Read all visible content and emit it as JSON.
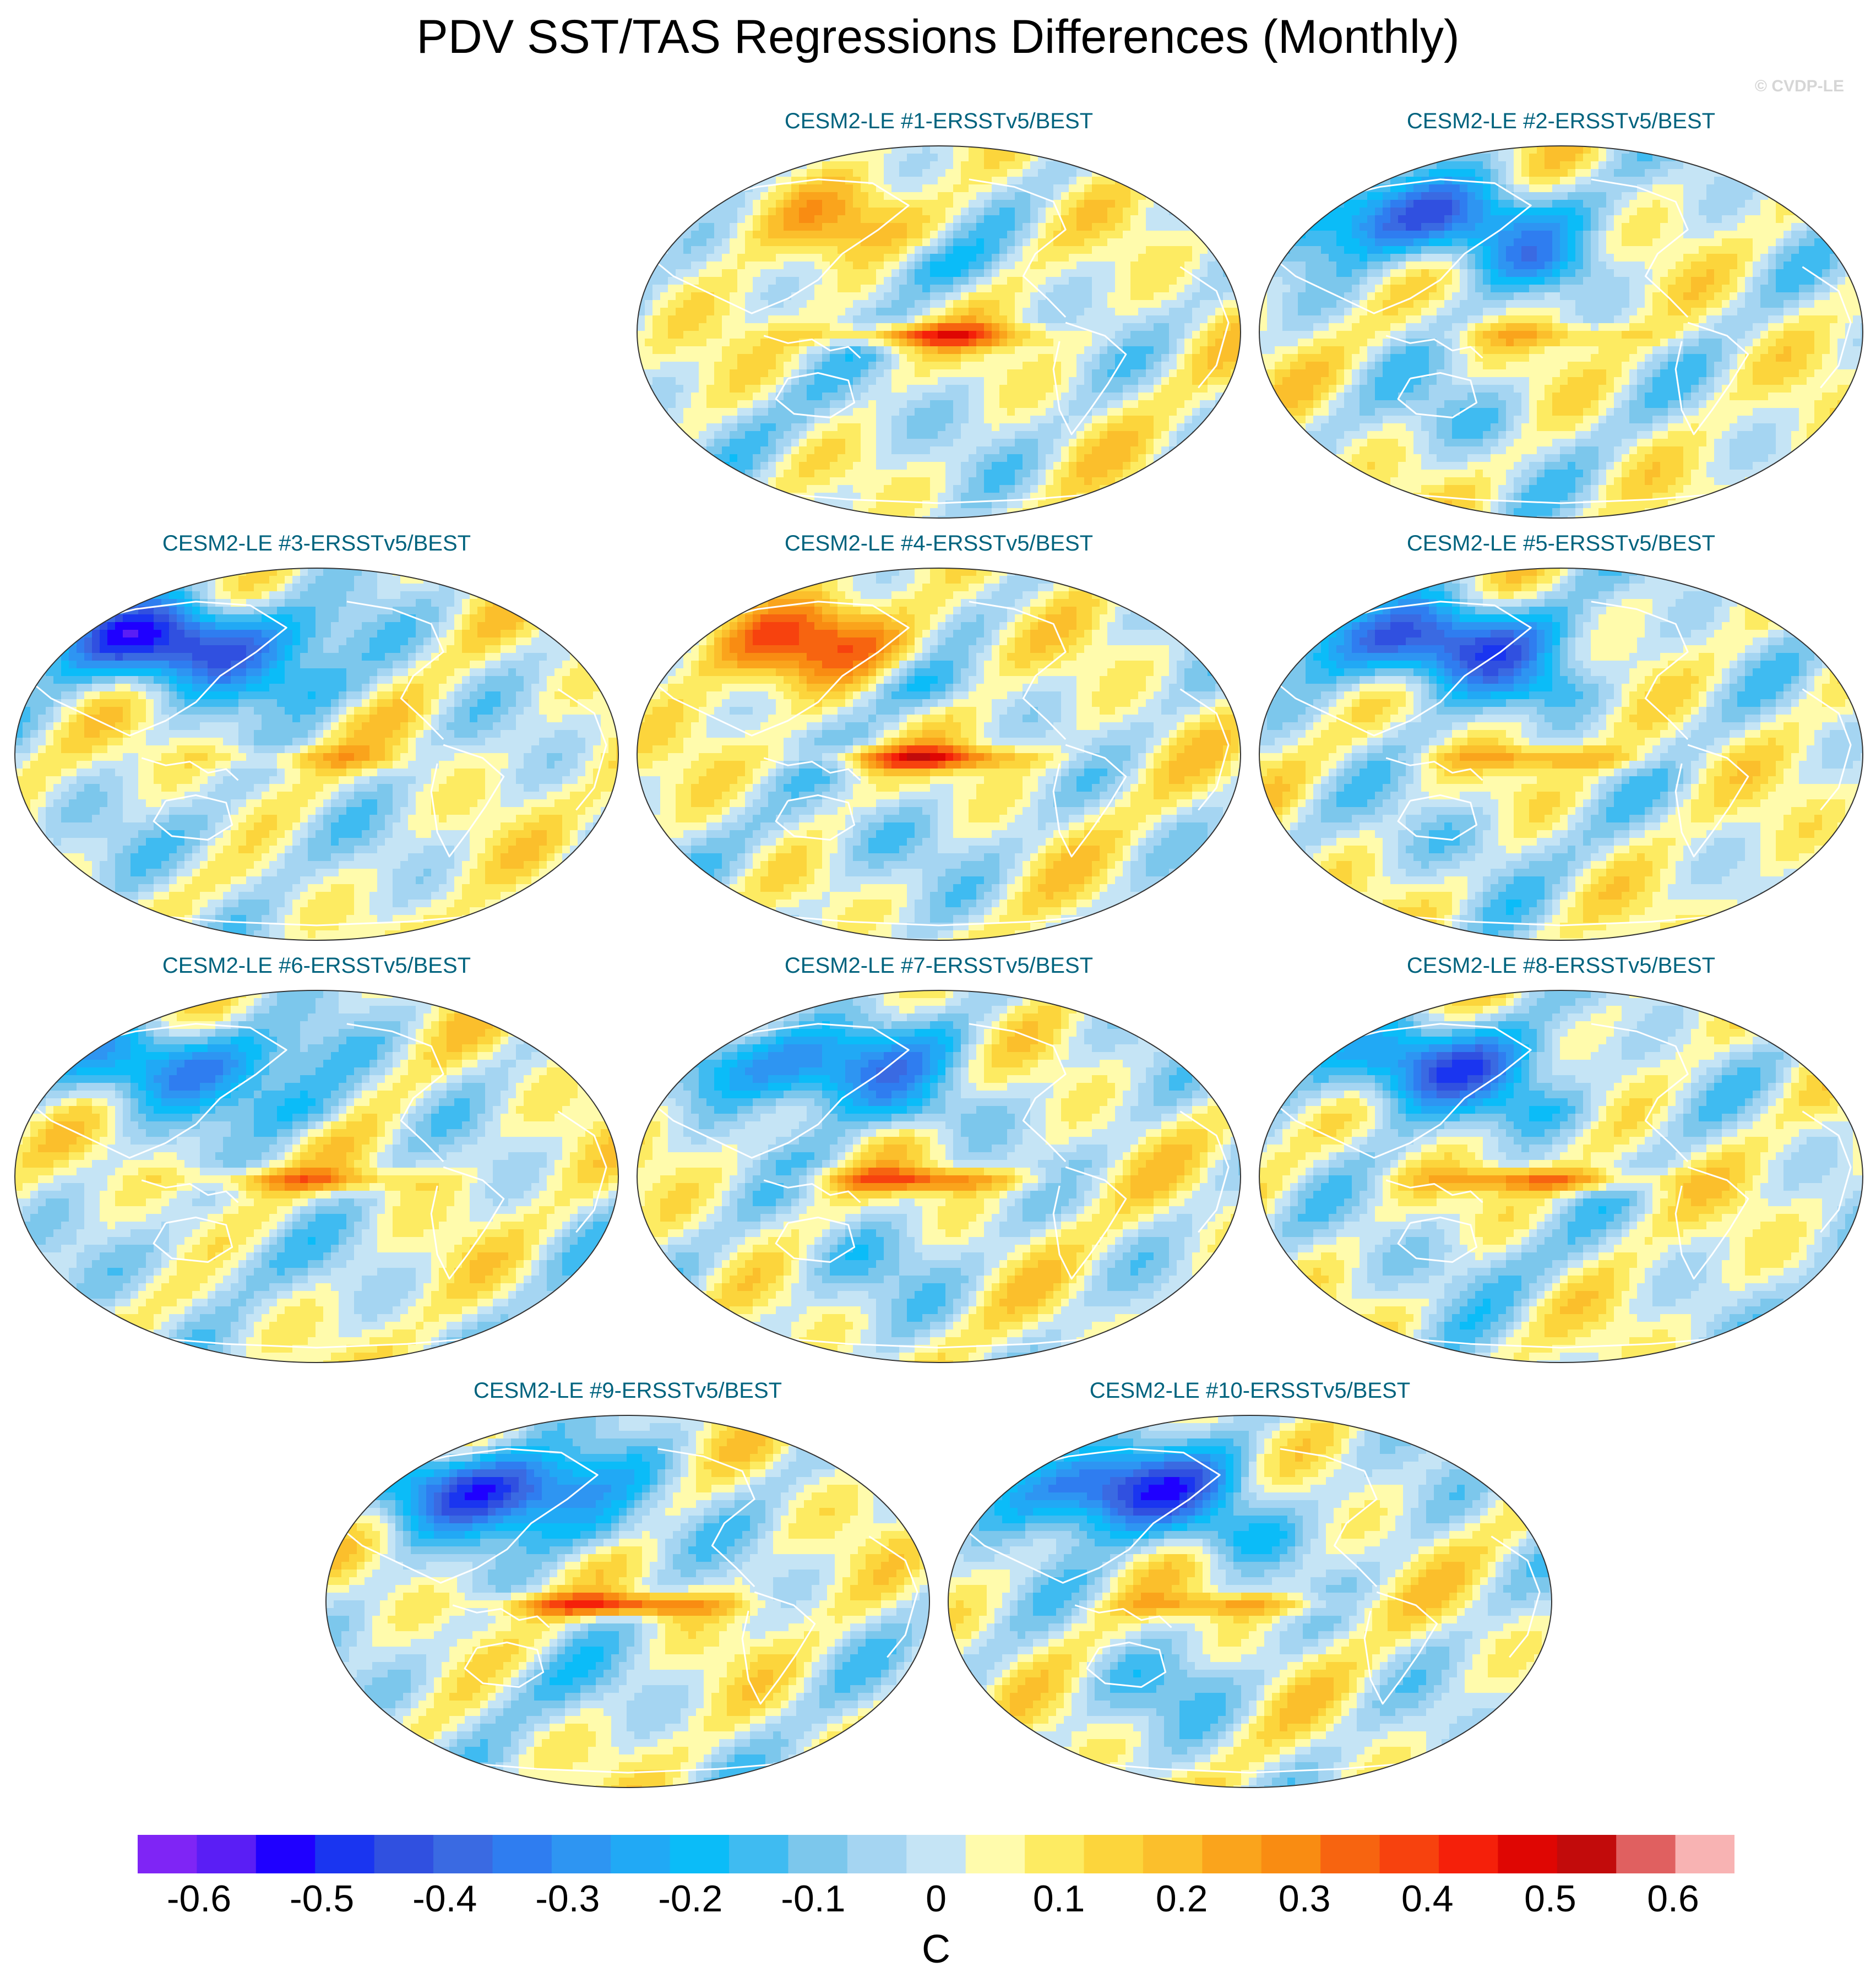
{
  "page": {
    "title": "PDV SST/TAS Regressions Differences (Monthly)",
    "copyright": "© CVDP-LE"
  },
  "chart_data": {
    "type": "heatmap",
    "projection": "Robinson (global, Pacific-centered)",
    "variable": "SST/TAS regression difference",
    "panels": [
      {
        "title": "CESM2-LE #1-ERSSTv5/BEST",
        "row": 0,
        "col": 1,
        "nh_bias": 0.15,
        "enso": 0.35
      },
      {
        "title": "CESM2-LE #2-ERSSTv5/BEST",
        "row": 0,
        "col": 2,
        "nh_bias": -0.45,
        "enso": 0.15
      },
      {
        "title": "CESM2-LE #3-ERSSTv5/BEST",
        "row": 1,
        "col": 0,
        "nh_bias": -0.55,
        "enso": 0.15
      },
      {
        "title": "CESM2-LE #4-ERSSTv5/BEST",
        "row": 1,
        "col": 1,
        "nh_bias": 0.3,
        "enso": 0.35
      },
      {
        "title": "CESM2-LE #5-ERSSTv5/BEST",
        "row": 1,
        "col": 2,
        "nh_bias": -0.5,
        "enso": 0.2
      },
      {
        "title": "CESM2-LE #6-ERSSTv5/BEST",
        "row": 2,
        "col": 0,
        "nh_bias": -0.35,
        "enso": 0.25
      },
      {
        "title": "CESM2-LE #7-ERSSTv5/BEST",
        "row": 2,
        "col": 1,
        "nh_bias": -0.4,
        "enso": 0.3
      },
      {
        "title": "CESM2-LE #8-ERSSTv5/BEST",
        "row": 2,
        "col": 2,
        "nh_bias": -0.4,
        "enso": 0.3
      },
      {
        "title": "CESM2-LE #9-ERSSTv5/BEST",
        "row": 3,
        "col": 0.5,
        "nh_bias": -0.5,
        "enso": 0.4
      },
      {
        "title": "CESM2-LE #10-ERSSTv5/BEST",
        "row": 3,
        "col": 1.5,
        "nh_bias": -0.5,
        "enso": 0.2
      }
    ],
    "colorbar": {
      "units": "C",
      "levels": [
        -0.65,
        -0.6,
        -0.55,
        -0.5,
        -0.45,
        -0.4,
        -0.35,
        -0.3,
        -0.25,
        -0.2,
        -0.15,
        -0.1,
        -0.05,
        0,
        0.05,
        0.1,
        0.15,
        0.2,
        0.25,
        0.3,
        0.35,
        0.4,
        0.45,
        0.5,
        0.55,
        0.6,
        0.65
      ],
      "tick_labels": [
        "-0.6",
        "-0.5",
        "-0.4",
        "-0.3",
        "-0.2",
        "-0.1",
        "0",
        "0.1",
        "0.2",
        "0.3",
        "0.4",
        "0.5",
        "0.6"
      ],
      "tick_values": [
        -0.6,
        -0.5,
        -0.4,
        -0.3,
        -0.2,
        -0.1,
        0,
        0.1,
        0.2,
        0.3,
        0.4,
        0.5,
        0.6
      ],
      "colors": [
        "#7f25f5",
        "#5a1ef5",
        "#1f00ff",
        "#1a35f0",
        "#3050e0",
        "#3a6ae2",
        "#2f7df0",
        "#2e95f2",
        "#21a9f5",
        "#0bbcf8",
        "#3fbbf1",
        "#7cc7ec",
        "#a5d5f2",
        "#c5e4f5",
        "#fffbac",
        "#fdeb62",
        "#fcd53c",
        "#fbbf2c",
        "#faa41c",
        "#f98c12",
        "#f76410",
        "#f7420e",
        "#f5200a",
        "#df0603",
        "#c20b0b",
        "#e06060",
        "#f8b3b3"
      ]
    }
  }
}
